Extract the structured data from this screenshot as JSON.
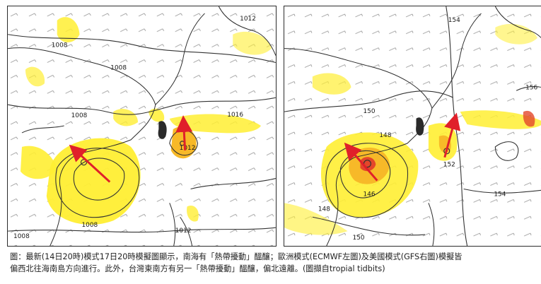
{
  "left_map": {
    "labels": {
      "l1012_top": "1012",
      "l1008_a": "1008",
      "l1008_b": "1008",
      "l1008_c": "1008",
      "l1016": "1016",
      "l1012_e": "1012",
      "l1008_d": "1008",
      "l1012_s": "1012",
      "l1008_e": "1008"
    }
  },
  "right_map": {
    "labels": {
      "l154_top": "154",
      "l156": "156",
      "l150": "150",
      "l148": "148",
      "l152": "152",
      "l146": "146",
      "l154_b": "154",
      "l148_b": "148",
      "l150_b": "150"
    }
  },
  "caption": {
    "line1": "圖：最新(14日20時)模式17日20時模擬圖顯示，南海有「熱帶擾動」醞釀；歐洲模式(ECMWF左圖)及美國模式(GFS右圖)模擬皆",
    "line2": "偏西北往海南島方向進行。此外，台灣東南方有另一「熱帶擾動」醞釀，偏北遠離。(圖擷自tropial tidbits)"
  },
  "colors": {
    "precip_yellow": "#ffee33",
    "precip_orange": "#f7b928",
    "precip_red": "#e4472a",
    "track_arrow": "#e0202a",
    "contour": "#333333"
  }
}
